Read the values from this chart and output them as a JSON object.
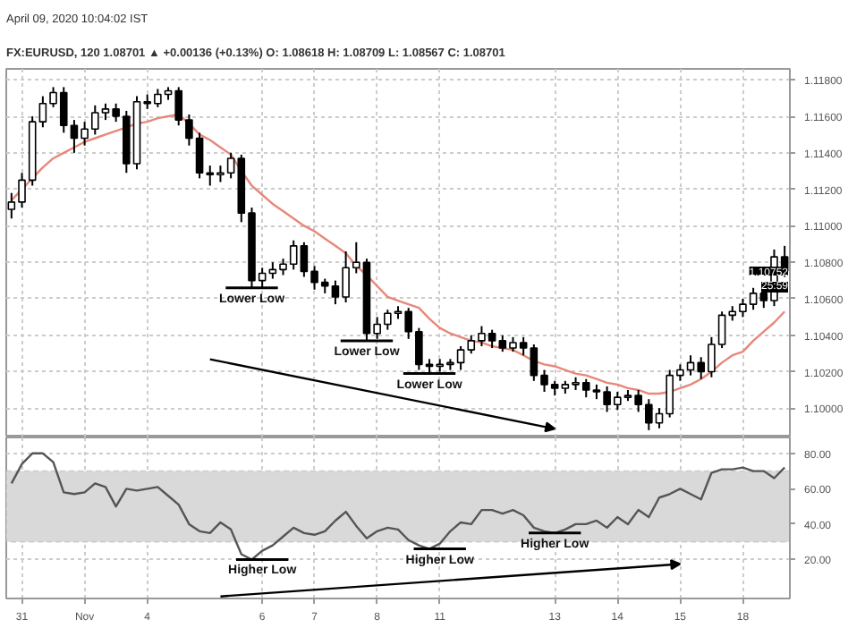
{
  "chart_data": [
    {
      "type": "candlestick",
      "subtitle": "April 09, 2020 10:04:02 IST",
      "title": "FX:EURUSD, 120  1.08701 ▲ +0.00136 (+0.13%)  O: 1.08618  H: 1.08709  L: 1.08567  C: 1.08701",
      "categories": [
        null,
        null,
        null,
        null,
        null,
        null,
        null,
        null,
        null,
        null,
        null,
        null,
        null,
        null,
        null,
        null,
        null,
        null,
        null,
        null,
        null,
        null,
        null,
        null,
        null,
        null,
        null,
        null,
        null,
        null,
        null,
        null,
        null,
        null,
        null,
        null,
        null,
        null,
        null,
        null,
        null,
        null,
        null,
        null,
        null,
        null,
        null,
        null,
        null,
        null,
        null,
        null,
        null,
        null,
        null,
        null,
        null,
        null,
        null,
        null,
        null,
        null,
        null,
        null,
        null,
        null,
        null,
        null,
        null,
        null,
        null,
        null,
        null,
        null,
        null
      ],
      "ohlc": [
        [
          1.1109,
          1.1118,
          1.1104,
          1.1113
        ],
        [
          1.1113,
          1.1129,
          1.111,
          1.1125
        ],
        [
          1.1125,
          1.116,
          1.1122,
          1.1157
        ],
        [
          1.1157,
          1.1171,
          1.1154,
          1.1167
        ],
        [
          1.1167,
          1.1176,
          1.1165,
          1.1173
        ],
        [
          1.1173,
          1.1176,
          1.1151,
          1.1155
        ],
        [
          1.1155,
          1.1158,
          1.114,
          1.1148
        ],
        [
          1.1148,
          1.1157,
          1.1144,
          1.1153
        ],
        [
          1.1153,
          1.1166,
          1.115,
          1.1162
        ],
        [
          1.1162,
          1.1167,
          1.1158,
          1.1164
        ],
        [
          1.1164,
          1.1167,
          1.1157,
          1.116
        ],
        [
          1.116,
          1.1163,
          1.1129,
          1.1134
        ],
        [
          1.1134,
          1.1171,
          1.1131,
          1.1168
        ],
        [
          1.1168,
          1.1172,
          1.1164,
          1.1167
        ],
        [
          1.1167,
          1.1175,
          1.1165,
          1.1172
        ],
        [
          1.1172,
          1.1176,
          1.1169,
          1.1174
        ],
        [
          1.1174,
          1.1176,
          1.1155,
          1.1158
        ],
        [
          1.1158,
          1.1161,
          1.1144,
          1.1148
        ],
        [
          1.1148,
          1.1151,
          1.1126,
          1.1129
        ],
        [
          1.1129,
          1.1133,
          1.1122,
          1.1128
        ],
        [
          1.1128,
          1.1133,
          1.1124,
          1.1129
        ],
        [
          1.1129,
          1.114,
          1.1126,
          1.1137
        ],
        [
          1.1137,
          1.1139,
          1.1102,
          1.1107
        ],
        [
          1.1107,
          1.111,
          1.1066,
          1.107
        ],
        [
          1.107,
          1.1077,
          1.1066,
          1.1074
        ],
        [
          1.1074,
          1.108,
          1.1071,
          1.1076
        ],
        [
          1.1076,
          1.1082,
          1.1073,
          1.1079
        ],
        [
          1.1079,
          1.1092,
          1.1076,
          1.1089
        ],
        [
          1.1089,
          1.1091,
          1.1072,
          1.1075
        ],
        [
          1.1075,
          1.1078,
          1.1065,
          1.1069
        ],
        [
          1.1069,
          1.1071,
          1.1063,
          1.1067
        ],
        [
          1.1067,
          1.107,
          1.1057,
          1.1061
        ],
        [
          1.1061,
          1.1086,
          1.1058,
          1.1077
        ],
        [
          1.1077,
          1.1091,
          1.1074,
          1.108
        ],
        [
          1.108,
          1.1082,
          1.1037,
          1.1041
        ],
        [
          1.1041,
          1.105,
          1.1038,
          1.1046
        ],
        [
          1.1046,
          1.1054,
          1.1043,
          1.1052
        ],
        [
          1.1052,
          1.1056,
          1.1049,
          1.1053
        ],
        [
          1.1053,
          1.1055,
          1.1038,
          1.1042
        ],
        [
          1.1042,
          1.1044,
          1.1021,
          1.1024
        ],
        [
          1.1024,
          1.1027,
          1.1019,
          1.1023
        ],
        [
          1.1023,
          1.1027,
          1.102,
          1.1024
        ],
        [
          1.1024,
          1.1027,
          1.1021,
          1.1025
        ],
        [
          1.1025,
          1.1034,
          1.1021,
          1.1032
        ],
        [
          1.1032,
          1.104,
          1.103,
          1.1037
        ],
        [
          1.1037,
          1.1045,
          1.1034,
          1.1041
        ],
        [
          1.1041,
          1.1043,
          1.1033,
          1.1037
        ],
        [
          1.1037,
          1.104,
          1.1031,
          1.1033
        ],
        [
          1.1033,
          1.1039,
          1.1031,
          1.1036
        ],
        [
          1.1036,
          1.1039,
          1.1029,
          1.1033
        ],
        [
          1.1033,
          1.1035,
          1.1015,
          1.1018
        ],
        [
          1.1018,
          1.1021,
          1.1009,
          1.1013
        ],
        [
          1.1013,
          1.1015,
          1.1007,
          1.1011
        ],
        [
          1.1011,
          1.1015,
          1.1008,
          1.1013
        ],
        [
          1.1013,
          1.1017,
          1.101,
          1.1014
        ],
        [
          1.1014,
          1.1016,
          1.1006,
          1.101
        ],
        [
          1.101,
          1.1013,
          1.1005,
          1.1009
        ],
        [
          1.1009,
          1.1012,
          1.0998,
          1.1002
        ],
        [
          1.1002,
          1.1009,
          1.0999,
          1.1006
        ],
        [
          1.1006,
          1.101,
          1.1004,
          1.1007
        ],
        [
          1.1007,
          1.101,
          1.0998,
          1.1002
        ],
        [
          1.1002,
          1.1005,
          1.0988,
          1.0992
        ],
        [
          1.0992,
          1.1,
          1.0989,
          1.0997
        ],
        [
          1.0997,
          1.1021,
          1.0995,
          1.1018
        ],
        [
          1.1018,
          1.1024,
          1.1015,
          1.1021
        ],
        [
          1.1021,
          1.1029,
          1.1018,
          1.1025
        ],
        [
          1.1025,
          1.1028,
          1.1016,
          1.102
        ],
        [
          1.102,
          1.1039,
          1.1017,
          1.1035
        ],
        [
          1.1035,
          1.1053,
          1.1033,
          1.1051
        ],
        [
          1.1051,
          1.1056,
          1.1048,
          1.1053
        ],
        [
          1.1053,
          1.106,
          1.105,
          1.1057
        ],
        [
          1.1057,
          1.1066,
          1.1054,
          1.1063
        ],
        [
          1.1063,
          1.1066,
          1.1055,
          1.1059
        ],
        [
          1.1059,
          1.1087,
          1.1056,
          1.1083
        ],
        [
          1.1083,
          1.1089,
          1.1072,
          1.10752
        ]
      ],
      "series": [
        {
          "type": "line",
          "color": "#e8877a",
          "values": [
            1.1114,
            1.112,
            1.1126,
            1.1132,
            1.1137,
            1.114,
            1.1143,
            1.1146,
            1.1148,
            1.115,
            1.1152,
            1.1154,
            1.1156,
            1.1157,
            1.1159,
            1.116,
            1.1161,
            1.1156,
            1.115,
            1.1147,
            1.1143,
            1.1139,
            1.113,
            1.1122,
            1.1117,
            1.1112,
            1.1108,
            1.1104,
            1.11,
            1.1097,
            1.1093,
            1.1089,
            1.1085,
            1.1078,
            1.1073,
            1.1067,
            1.1061,
            1.1059,
            1.1057,
            1.1055,
            1.1049,
            1.1044,
            1.1041,
            1.1039,
            1.1037,
            1.1036,
            1.1034,
            1.1033,
            1.1032,
            1.1029,
            1.1026,
            1.1024,
            1.1023,
            1.1021,
            1.1019,
            1.1018,
            1.1016,
            1.1014,
            1.1013,
            1.1011,
            1.101,
            1.1008,
            1.1008,
            1.1009,
            1.1011,
            1.1013,
            1.1016,
            1.102,
            1.1025,
            1.1029,
            1.1031,
            1.1037,
            1.1042,
            1.1047,
            1.1053
          ]
        }
      ],
      "ylim": [
        1.0984,
        1.1186
      ],
      "yticks": [
        {
          "value": 1.1,
          "label": "1.10000"
        },
        {
          "value": 1.102,
          "label": "1.10200"
        },
        {
          "value": 1.104,
          "label": "1.10400"
        },
        {
          "value": 1.106,
          "label": "1.10600"
        },
        {
          "value": 1.108,
          "label": "1.10800"
        },
        {
          "value": 1.11,
          "label": "1.11000"
        },
        {
          "value": 1.112,
          "label": "1.11200"
        },
        {
          "value": 1.114,
          "label": "1.11400"
        },
        {
          "value": 1.116,
          "label": "1.11600"
        },
        {
          "value": 1.118,
          "label": "1.11800"
        }
      ],
      "grid": true,
      "tick_labels": "y",
      "annotations": [
        {
          "text": "Lower Low",
          "y": 1.1066
        },
        {
          "text": "Lower Low",
          "y": 1.1037
        },
        {
          "text": "Lower Low",
          "y": 1.1019
        },
        {
          "text": "1.10752",
          "y": 1.10752
        },
        "25:59"
      ]
    },
    {
      "type": "line",
      "categories": [
        null,
        "31",
        null,
        null,
        null,
        null,
        null,
        "Nov",
        null,
        null,
        null,
        null,
        null,
        "4",
        null,
        null,
        null,
        null,
        null,
        null,
        null,
        null,
        null,
        null,
        "6",
        null,
        null,
        null,
        null,
        "7",
        null,
        null,
        null,
        null,
        null,
        "8",
        null,
        null,
        null,
        null,
        null,
        "11",
        null,
        null,
        null,
        null,
        null,
        null,
        null,
        null,
        null,
        null,
        "13",
        null,
        null,
        null,
        null,
        null,
        "14",
        null,
        null,
        null,
        null,
        null,
        "15",
        null,
        null,
        null,
        null,
        null,
        "18",
        null,
        null,
        null,
        null
      ],
      "series": [
        {
          "color": "#555555",
          "values": [
            63,
            74,
            80,
            80,
            75,
            58,
            57,
            58,
            63,
            61,
            50,
            60,
            59,
            60,
            61,
            56,
            51,
            40,
            36,
            35,
            41,
            37,
            23,
            20,
            25,
            28,
            33,
            38,
            35,
            34,
            36,
            42,
            47,
            39,
            32,
            36,
            38,
            37,
            31,
            28,
            26,
            29,
            36,
            41,
            40,
            48,
            48,
            46,
            48,
            45,
            38,
            36,
            35,
            37,
            40,
            40,
            42,
            38,
            44,
            40,
            48,
            44,
            55,
            57,
            60,
            57,
            54,
            69,
            71,
            71,
            72,
            70,
            70,
            66,
            72
          ]
        }
      ],
      "ylim": [
        -2,
        89
      ],
      "yticks": [
        {
          "value": 20,
          "label": "20.00"
        },
        {
          "value": 40,
          "label": "40.00"
        },
        {
          "value": 60,
          "label": "60.00"
        },
        {
          "value": 80,
          "label": "80.00"
        }
      ],
      "bands": [
        {
          "axis": "y",
          "from": 30,
          "to": 70,
          "color": "#d9d9d9"
        }
      ],
      "grid": true,
      "annotations": [
        {
          "text": "Higher Low",
          "x": "6",
          "y": 20
        },
        {
          "text": "Higher Low",
          "x": "11",
          "y": 26
        },
        {
          "text": "Higher Low",
          "x": "13",
          "y": 35
        }
      ]
    }
  ]
}
